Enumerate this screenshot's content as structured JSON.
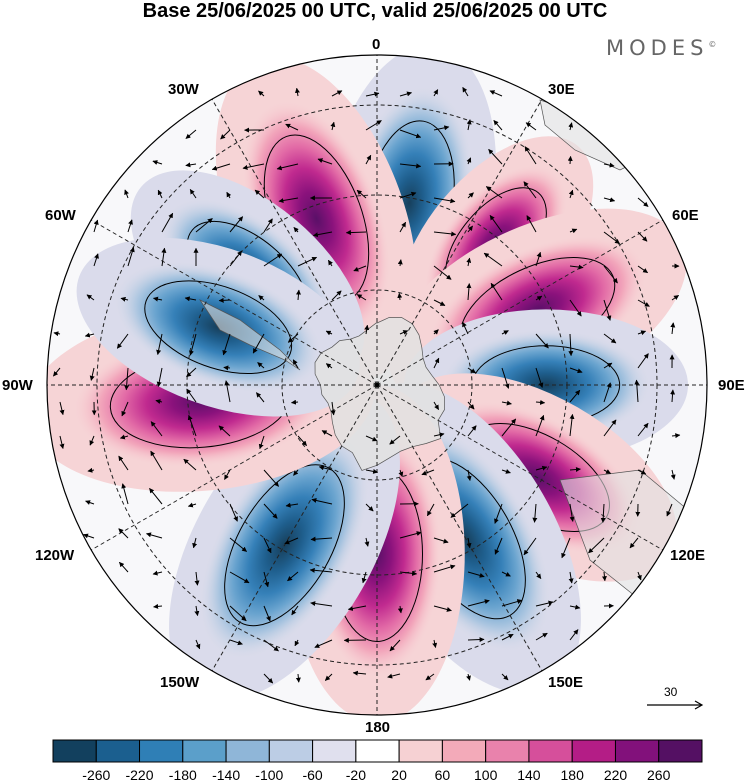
{
  "title": "Base 25/06/2025 00 UTC, valid 25/06/2025 00 UTC",
  "brand": {
    "name": "MODES",
    "mark": "©"
  },
  "longitude_labels": {
    "n0": "0",
    "e30": "30E",
    "e60": "60E",
    "e90": "90E",
    "e120": "120E",
    "e150": "150E",
    "s180": "180",
    "w150": "150W",
    "w120": "120W",
    "w90": "90W",
    "w60": "60W",
    "w30": "30W"
  },
  "reference_vector": {
    "label": "30"
  },
  "colorbar": {
    "tick_labels": [
      "-260",
      "-220",
      "-180",
      "-140",
      "-100",
      "-60",
      "-20",
      "20",
      "60",
      "100",
      "140",
      "180",
      "220",
      "260"
    ],
    "colors": [
      "#12405e",
      "#1b5f8f",
      "#2f7fb6",
      "#5b9fca",
      "#8fb6d8",
      "#bccde5",
      "#e0e0ee",
      "#ffffff",
      "#f6d1d3",
      "#f3aab9",
      "#e982ac",
      "#d64f9b",
      "#b41d86",
      "#82117b",
      "#541063"
    ]
  },
  "map_features": {
    "projection": "south-polar-stereographic",
    "background_land_color": "#e3e3e3",
    "anomaly_lobes": [
      {
        "sign": "negative",
        "center_longitude": 10,
        "intensity": -220
      },
      {
        "sign": "positive",
        "center_longitude": -20,
        "intensity": 250
      },
      {
        "sign": "negative",
        "center_longitude": -50,
        "intensity": -150
      },
      {
        "sign": "positive",
        "center_longitude": 40,
        "intensity": 110
      },
      {
        "sign": "positive",
        "center_longitude": 65,
        "intensity": 220
      },
      {
        "sign": "negative",
        "center_longitude": 90,
        "intensity": -160
      },
      {
        "sign": "positive",
        "center_longitude": 120,
        "intensity": 200
      },
      {
        "sign": "negative",
        "center_longitude": 150,
        "intensity": -260
      },
      {
        "sign": "positive",
        "center_longitude": 180,
        "intensity": 250
      },
      {
        "sign": "negative",
        "center_longitude": -150,
        "intensity": -260
      },
      {
        "sign": "positive",
        "center_longitude": -95,
        "intensity": 270
      },
      {
        "sign": "negative",
        "center_longitude": -70,
        "intensity": -180
      }
    ]
  }
}
